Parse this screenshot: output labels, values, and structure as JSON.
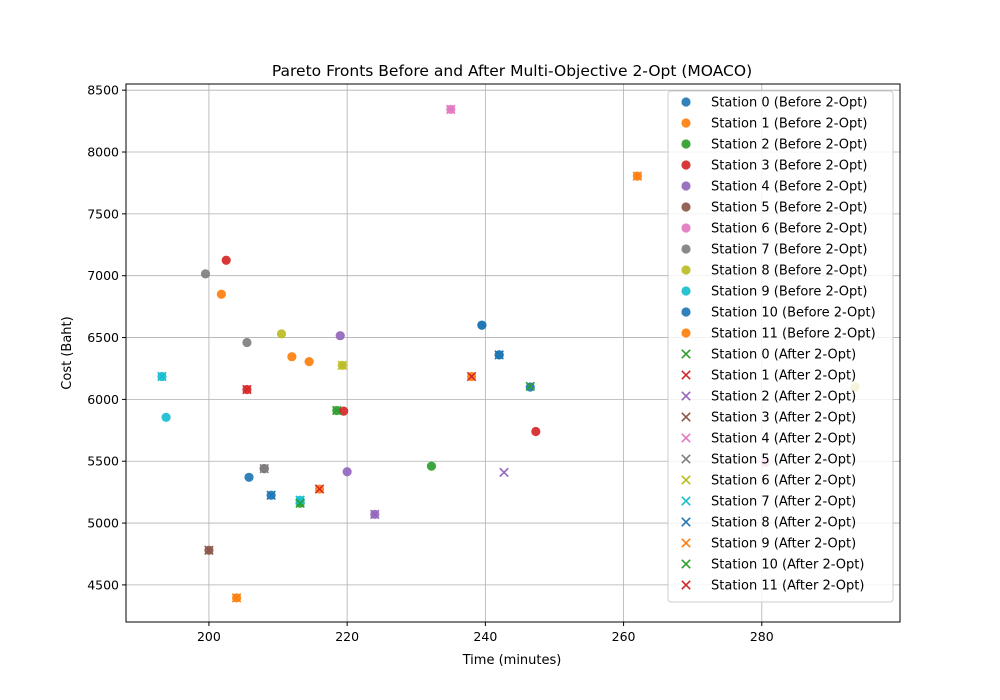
{
  "chart_data": {
    "type": "scatter",
    "title": "Pareto Fronts Before and After Multi-Objective 2-Opt (MOACO)",
    "xlabel": "Time (minutes)",
    "ylabel": "Cost (Baht)",
    "xlim": [
      188,
      300
    ],
    "ylim": [
      4200,
      8550
    ],
    "xticks": [
      200,
      220,
      240,
      260,
      280
    ],
    "yticks": [
      4500,
      5000,
      5500,
      6000,
      6500,
      7000,
      7500,
      8000,
      8500
    ],
    "grid": true,
    "legend_position": "top-right",
    "palette": [
      "#1f77b4",
      "#ff7f0e",
      "#2ca02c",
      "#d62728",
      "#9467bd",
      "#8c564b",
      "#e377c2",
      "#7f7f7f",
      "#bcbd22",
      "#17becf"
    ],
    "series": [
      {
        "name": "Station 0 (Before 2-Opt)",
        "marker": "circle",
        "color": "#1f77b4",
        "points": [
          [
            239.5,
            6600
          ],
          [
            242,
            6360
          ],
          [
            246.5,
            6100
          ]
        ]
      },
      {
        "name": "Station 1 (Before 2-Opt)",
        "marker": "circle",
        "color": "#ff7f0e",
        "points": [
          [
            201.8,
            6850
          ],
          [
            212,
            6345
          ],
          [
            214.5,
            6305
          ]
        ]
      },
      {
        "name": "Station 2 (Before 2-Opt)",
        "marker": "circle",
        "color": "#2ca02c",
        "points": [
          [
            218.5,
            5910
          ],
          [
            232.2,
            5460
          ],
          [
            213.2,
            5160
          ]
        ]
      },
      {
        "name": "Station 3 (Before 2-Opt)",
        "marker": "circle",
        "color": "#d62728",
        "points": [
          [
            202.5,
            7125
          ],
          [
            205.5,
            6080
          ],
          [
            219.5,
            5905
          ],
          [
            247.3,
            5740
          ]
        ]
      },
      {
        "name": "Station 4 (Before 2-Opt)",
        "marker": "circle",
        "color": "#9467bd",
        "points": [
          [
            219,
            6515
          ],
          [
            220,
            5415
          ],
          [
            224,
            5070
          ]
        ]
      },
      {
        "name": "Station 5 (Before 2-Opt)",
        "marker": "circle",
        "color": "#8c564b",
        "points": [
          [
            200,
            4780
          ],
          [
            208,
            5440
          ]
        ]
      },
      {
        "name": "Station 6 (Before 2-Opt)",
        "marker": "circle",
        "color": "#e377c2",
        "points": [
          [
            235,
            8345
          ],
          [
            280.5,
            5490
          ]
        ]
      },
      {
        "name": "Station 7 (Before 2-Opt)",
        "marker": "circle",
        "color": "#7f7f7f",
        "points": [
          [
            199.5,
            7015
          ],
          [
            205.5,
            6460
          ],
          [
            208,
            5440
          ]
        ]
      },
      {
        "name": "Station 8 (Before 2-Opt)",
        "marker": "circle",
        "color": "#bcbd22",
        "points": [
          [
            210.5,
            6530
          ],
          [
            219.3,
            6275
          ],
          [
            293.5,
            6100
          ]
        ]
      },
      {
        "name": "Station 9 (Before 2-Opt)",
        "marker": "circle",
        "color": "#17becf",
        "points": [
          [
            193.2,
            6185
          ],
          [
            193.8,
            5855
          ],
          [
            213.2,
            5185
          ]
        ]
      },
      {
        "name": "Station 10 (Before 2-Opt)",
        "marker": "circle",
        "color": "#1f77b4",
        "points": [
          [
            205.8,
            5370
          ],
          [
            209,
            5225
          ],
          [
            239.5,
            6600
          ],
          [
            242,
            6360
          ]
        ]
      },
      {
        "name": "Station 11 (Before 2-Opt)",
        "marker": "circle",
        "color": "#ff7f0e",
        "points": [
          [
            204,
            4395
          ],
          [
            216,
            5275
          ],
          [
            238,
            6185
          ],
          [
            262,
            7805
          ]
        ]
      },
      {
        "name": "Station 0 (After 2-Opt)",
        "marker": "x",
        "color": "#2ca02c",
        "points": [
          [
            246.5,
            6105
          ]
        ]
      },
      {
        "name": "Station 1 (After 2-Opt)",
        "marker": "x",
        "color": "#d62728",
        "points": [
          [
            216,
            5275
          ],
          [
            238,
            6185
          ]
        ]
      },
      {
        "name": "Station 2 (After 2-Opt)",
        "marker": "x",
        "color": "#9467bd",
        "points": [
          [
            242.7,
            5410
          ],
          [
            224,
            5070
          ]
        ]
      },
      {
        "name": "Station 3 (After 2-Opt)",
        "marker": "x",
        "color": "#8c564b",
        "points": [
          [
            200,
            4780
          ]
        ]
      },
      {
        "name": "Station 4 (After 2-Opt)",
        "marker": "x",
        "color": "#e377c2",
        "points": [
          [
            235,
            8345
          ]
        ]
      },
      {
        "name": "Station 5 (After 2-Opt)",
        "marker": "x",
        "color": "#7f7f7f",
        "points": [
          [
            208,
            5440
          ]
        ]
      },
      {
        "name": "Station 6 (After 2-Opt)",
        "marker": "x",
        "color": "#bcbd22",
        "points": [
          [
            219.3,
            6275
          ]
        ]
      },
      {
        "name": "Station 7 (After 2-Opt)",
        "marker": "x",
        "color": "#17becf",
        "points": [
          [
            193.2,
            6185
          ],
          [
            213.2,
            5185
          ]
        ]
      },
      {
        "name": "Station 8 (After 2-Opt)",
        "marker": "x",
        "color": "#1f77b4",
        "points": [
          [
            209,
            5225
          ],
          [
            242,
            6360
          ]
        ]
      },
      {
        "name": "Station 9 (After 2-Opt)",
        "marker": "x",
        "color": "#ff7f0e",
        "points": [
          [
            204,
            4395
          ],
          [
            262,
            7805
          ]
        ]
      },
      {
        "name": "Station 10 (After 2-Opt)",
        "marker": "x",
        "color": "#2ca02c",
        "points": [
          [
            213.2,
            5160
          ],
          [
            218.5,
            5910
          ]
        ]
      },
      {
        "name": "Station 11 (After 2-Opt)",
        "marker": "x",
        "color": "#d62728",
        "points": [
          [
            205.5,
            6080
          ]
        ]
      }
    ]
  }
}
